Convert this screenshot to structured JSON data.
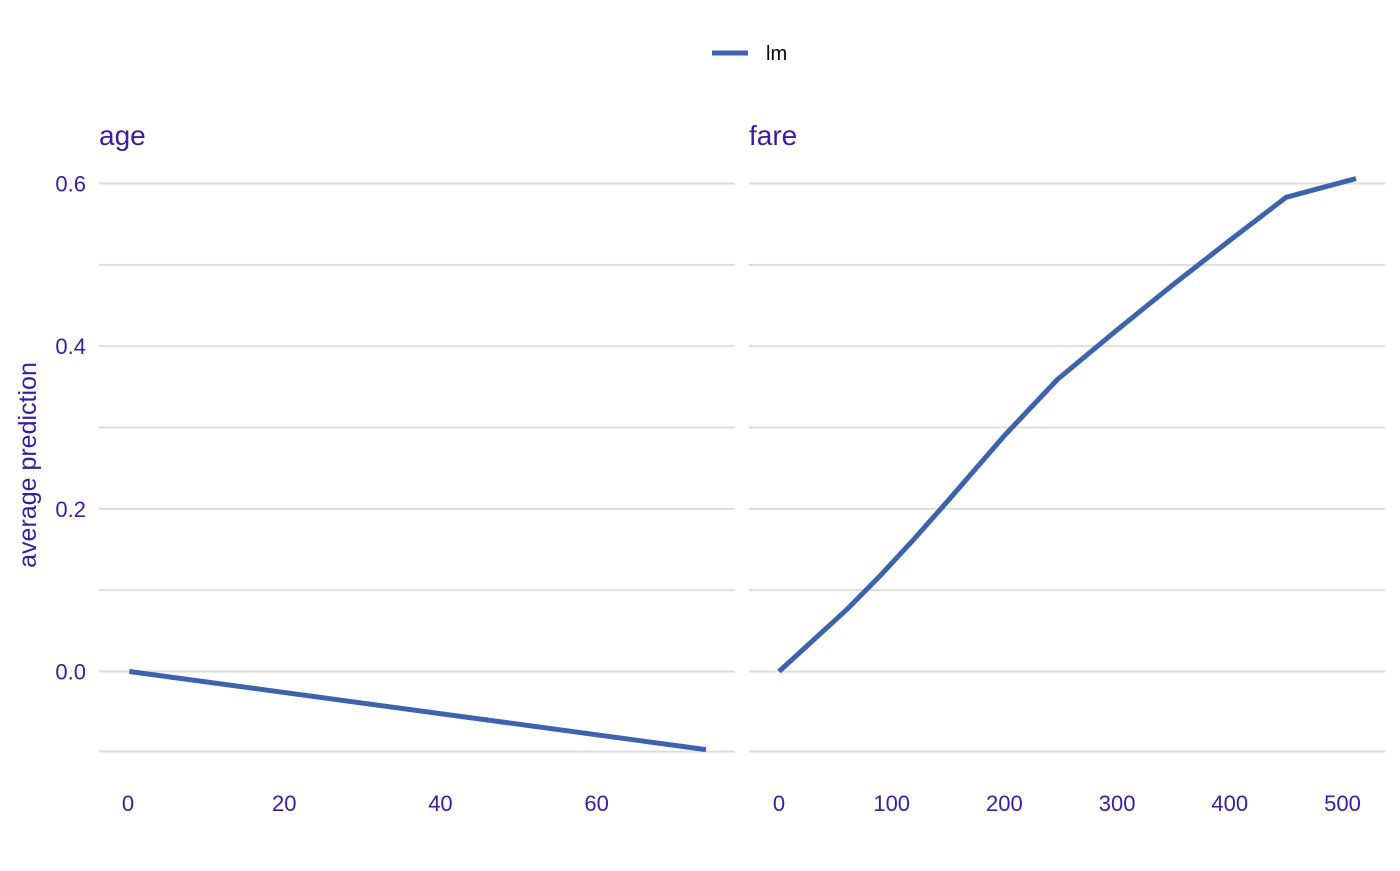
{
  "chart_data": {
    "type": "line",
    "ylabel": "average prediction",
    "legend": {
      "position": "top",
      "entries": [
        {
          "name": "lm",
          "color": "#3e63ad"
        }
      ]
    },
    "colors": {
      "text": "#371ea3",
      "grid": "#dedede",
      "line": "#3e63ad"
    },
    "y_ticks": [
      0.0,
      0.2,
      0.4,
      0.6
    ],
    "y_tick_labels": [
      "0.0",
      "0.2",
      "0.4",
      "0.6"
    ],
    "ylim": [
      -0.1,
      0.6
    ],
    "grid": true,
    "facets": [
      {
        "title": "age",
        "xlim": [
          0,
          74
        ],
        "x_ticks": [
          0,
          20,
          40,
          60
        ],
        "x_tick_labels": [
          "0",
          "20",
          "40",
          "60"
        ],
        "series": [
          {
            "name": "lm",
            "x": [
              0.17,
              74
            ],
            "y": [
              0.0,
              -0.096
            ]
          }
        ]
      },
      {
        "title": "fare",
        "xlim": [
          0,
          512
        ],
        "x_ticks": [
          0,
          100,
          200,
          300,
          400,
          500
        ],
        "x_tick_labels": [
          "0",
          "100",
          "200",
          "300",
          "400",
          "500"
        ],
        "series": [
          {
            "name": "lm",
            "x": [
              0,
              30,
              60,
              90,
              120,
              150,
              200,
              247,
              300,
              350,
              400,
              450,
              512
            ],
            "y": [
              0.0,
              0.038,
              0.076,
              0.118,
              0.163,
              0.21,
              0.29,
              0.359,
              0.42,
              0.476,
              0.53,
              0.583,
              0.606
            ]
          }
        ]
      }
    ]
  }
}
